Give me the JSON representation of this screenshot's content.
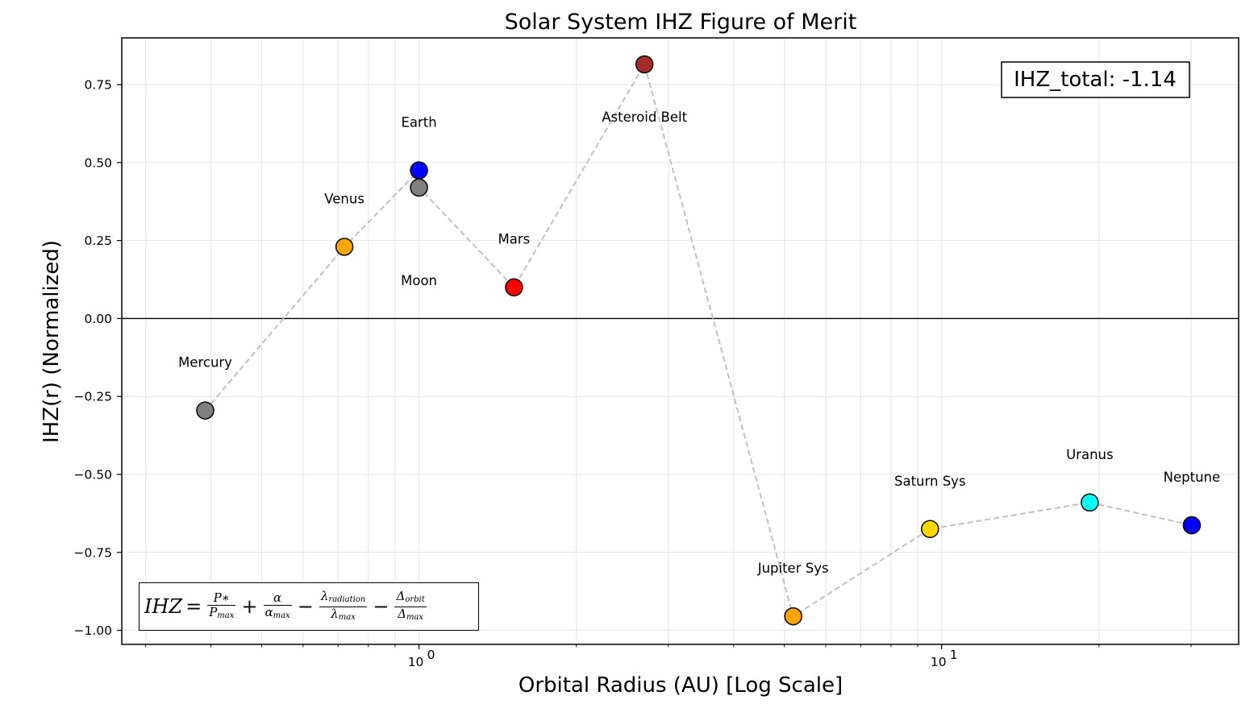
{
  "chart_data": {
    "type": "scatter",
    "title": "Solar System IHZ Figure of Merit",
    "xlabel": "Orbital Radius (AU) [Log Scale]",
    "ylabel": "IHZ(r) (Normalized)",
    "xscale": "log",
    "xlim": [
      0.27,
      37
    ],
    "ylim": [
      -1.045,
      0.9
    ],
    "yticks": [
      0.75,
      0.5,
      0.25,
      0.0,
      -0.25,
      -0.5,
      -0.75,
      -1.0
    ],
    "ytick_labels": [
      "0.75",
      "0.50",
      "0.25",
      "0.00",
      "−0.25",
      "−0.50",
      "−0.75",
      "−1.00"
    ],
    "xticks_major": [
      1,
      10
    ],
    "xtick_labels": [
      "10",
      "10"
    ],
    "xtick_exponents": [
      "0",
      "1"
    ],
    "grid": true,
    "zero_line": true,
    "line_order": [
      "Mercury",
      "Venus",
      "Earth",
      "Moon",
      "Mars",
      "Asteroid Belt",
      "Jupiter Sys",
      "Saturn Sys",
      "Uranus",
      "Neptune"
    ],
    "points": [
      {
        "name": "Mercury",
        "x": 0.39,
        "y": -0.295,
        "color": "#808080"
      },
      {
        "name": "Venus",
        "x": 0.72,
        "y": 0.23,
        "color": "#ffa500"
      },
      {
        "name": "Earth",
        "x": 1.0,
        "y": 0.475,
        "color": "#0000ff"
      },
      {
        "name": "Moon",
        "x": 1.0,
        "y": 0.42,
        "color": "#808080"
      },
      {
        "name": "Mars",
        "x": 1.52,
        "y": 0.1,
        "color": "#ff0000"
      },
      {
        "name": "Asteroid Belt",
        "x": 2.7,
        "y": 0.815,
        "color": "#a52a2a"
      },
      {
        "name": "Jupiter Sys",
        "x": 5.2,
        "y": -0.955,
        "color": "#ffa500"
      },
      {
        "name": "Saturn Sys",
        "x": 9.5,
        "y": -0.675,
        "color": "#ffd700"
      },
      {
        "name": "Uranus",
        "x": 19.2,
        "y": -0.59,
        "color": "#00ffff"
      },
      {
        "name": "Neptune",
        "x": 30.1,
        "y": -0.663,
        "color": "#0000ff"
      }
    ],
    "total_label": "IHZ_total: -1.14",
    "formula": {
      "lhs": "IHZ",
      "eq": "=",
      "t1_num": "P∗",
      "t1_den": "P",
      "t1_den_sub": "max",
      "op1": "+",
      "t2_num": "α",
      "t2_den": "α",
      "t2_den_sub": "max",
      "op2": "−",
      "t3_num": "λ",
      "t3_num_sub": "radiation",
      "t3_den": "λ",
      "t3_den_sub": "max",
      "op3": "−",
      "t4_num": "Δ",
      "t4_num_sub": "orbit",
      "t4_den": "Δ",
      "t4_den_sub": "max"
    },
    "colors": {
      "line": "#c0c0c0",
      "grid": "#e4e4e4",
      "axis": "#000000"
    }
  }
}
